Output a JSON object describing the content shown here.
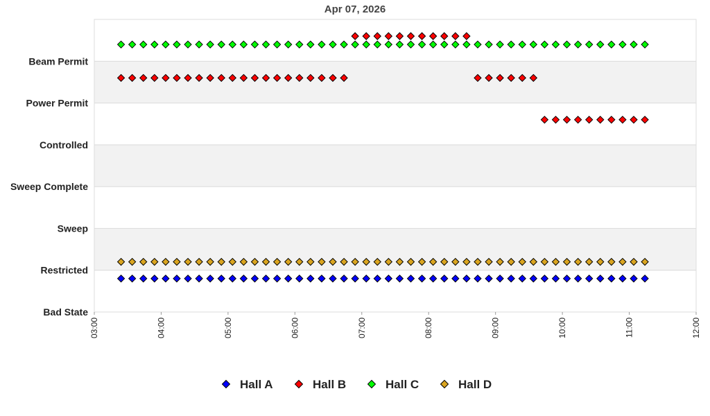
{
  "chart_data": {
    "type": "scatter",
    "title": "Apr 07, 2026",
    "xlabel": "",
    "ylabel": "",
    "x_ticks": [
      "03:00",
      "04:00",
      "05:00",
      "06:00",
      "07:00",
      "08:00",
      "09:00",
      "10:00",
      "11:00",
      "12:00"
    ],
    "xlim": [
      "03:00",
      "12:00"
    ],
    "y_categories": [
      "Bad State",
      "Restricted",
      "Sweep",
      "Sweep Complete",
      "Controlled",
      "Power Permit",
      "Beam Permit"
    ],
    "legend_position": "bottom",
    "grid": "alternating horizontal bands",
    "x": [
      "03:24",
      "03:34",
      "03:44",
      "03:54",
      "04:04",
      "04:14",
      "04:24",
      "04:34",
      "04:44",
      "04:54",
      "05:04",
      "05:14",
      "05:24",
      "05:34",
      "05:44",
      "05:54",
      "06:04",
      "06:14",
      "06:24",
      "06:34",
      "06:44",
      "06:54",
      "07:04",
      "07:14",
      "07:24",
      "07:34",
      "07:44",
      "07:54",
      "08:04",
      "08:14",
      "08:24",
      "08:34",
      "08:44",
      "08:54",
      "09:04",
      "09:14",
      "09:24",
      "09:34",
      "09:44",
      "09:54",
      "10:04",
      "10:14",
      "10:24",
      "10:34",
      "10:44",
      "10:54",
      "11:04",
      "11:14"
    ],
    "series": [
      {
        "name": "Hall A",
        "color": "#0000ff",
        "values": [
          "Bad State",
          "Bad State",
          "Bad State",
          "Bad State",
          "Bad State",
          "Bad State",
          "Bad State",
          "Bad State",
          "Bad State",
          "Bad State",
          "Bad State",
          "Bad State",
          "Bad State",
          "Bad State",
          "Bad State",
          "Bad State",
          "Bad State",
          "Bad State",
          "Bad State",
          "Bad State",
          "Bad State",
          "Bad State",
          "Bad State",
          "Bad State",
          "Bad State",
          "Bad State",
          "Bad State",
          "Bad State",
          "Bad State",
          "Bad State",
          "Bad State",
          "Bad State",
          "Bad State",
          "Bad State",
          "Bad State",
          "Bad State",
          "Bad State",
          "Bad State",
          "Bad State",
          "Bad State",
          "Bad State",
          "Bad State",
          "Bad State",
          "Bad State",
          "Bad State",
          "Bad State",
          "Bad State",
          "Bad State"
        ]
      },
      {
        "name": "Hall B",
        "color": "#ff0000",
        "values": [
          "Power Permit",
          "Power Permit",
          "Power Permit",
          "Power Permit",
          "Power Permit",
          "Power Permit",
          "Power Permit",
          "Power Permit",
          "Power Permit",
          "Power Permit",
          "Power Permit",
          "Power Permit",
          "Power Permit",
          "Power Permit",
          "Power Permit",
          "Power Permit",
          "Power Permit",
          "Power Permit",
          "Power Permit",
          "Power Permit",
          "Power Permit",
          "Beam Permit",
          "Beam Permit",
          "Beam Permit",
          "Beam Permit",
          "Beam Permit",
          "Beam Permit",
          "Beam Permit",
          "Beam Permit",
          "Beam Permit",
          "Beam Permit",
          "Beam Permit",
          "Power Permit",
          "Power Permit",
          "Power Permit",
          "Power Permit",
          "Power Permit",
          "Power Permit",
          "Controlled",
          "Controlled",
          "Controlled",
          "Controlled",
          "Controlled",
          "Controlled",
          "Controlled",
          "Controlled",
          "Controlled",
          "Controlled"
        ]
      },
      {
        "name": "Hall C",
        "color": "#00ff00",
        "values": [
          "Beam Permit",
          "Beam Permit",
          "Beam Permit",
          "Beam Permit",
          "Beam Permit",
          "Beam Permit",
          "Beam Permit",
          "Beam Permit",
          "Beam Permit",
          "Beam Permit",
          "Beam Permit",
          "Beam Permit",
          "Beam Permit",
          "Beam Permit",
          "Beam Permit",
          "Beam Permit",
          "Beam Permit",
          "Beam Permit",
          "Beam Permit",
          "Beam Permit",
          "Beam Permit",
          "Beam Permit",
          "Beam Permit",
          "Beam Permit",
          "Beam Permit",
          "Beam Permit",
          "Beam Permit",
          "Beam Permit",
          "Beam Permit",
          "Beam Permit",
          "Beam Permit",
          "Beam Permit",
          "Beam Permit",
          "Beam Permit",
          "Beam Permit",
          "Beam Permit",
          "Beam Permit",
          "Beam Permit",
          "Beam Permit",
          "Beam Permit",
          "Beam Permit",
          "Beam Permit",
          "Beam Permit",
          "Beam Permit",
          "Beam Permit",
          "Beam Permit",
          "Beam Permit",
          "Beam Permit"
        ]
      },
      {
        "name": "Hall D",
        "color": "#daa520",
        "values": [
          "Restricted",
          "Restricted",
          "Restricted",
          "Restricted",
          "Restricted",
          "Restricted",
          "Restricted",
          "Restricted",
          "Restricted",
          "Restricted",
          "Restricted",
          "Restricted",
          "Restricted",
          "Restricted",
          "Restricted",
          "Restricted",
          "Restricted",
          "Restricted",
          "Restricted",
          "Restricted",
          "Restricted",
          "Restricted",
          "Restricted",
          "Restricted",
          "Restricted",
          "Restricted",
          "Restricted",
          "Restricted",
          "Restricted",
          "Restricted",
          "Restricted",
          "Restricted",
          "Restricted",
          "Restricted",
          "Restricted",
          "Restricted",
          "Restricted",
          "Restricted",
          "Restricted",
          "Restricted",
          "Restricted",
          "Restricted",
          "Restricted",
          "Restricted",
          "Restricted",
          "Restricted",
          "Restricted",
          "Restricted"
        ]
      }
    ]
  }
}
